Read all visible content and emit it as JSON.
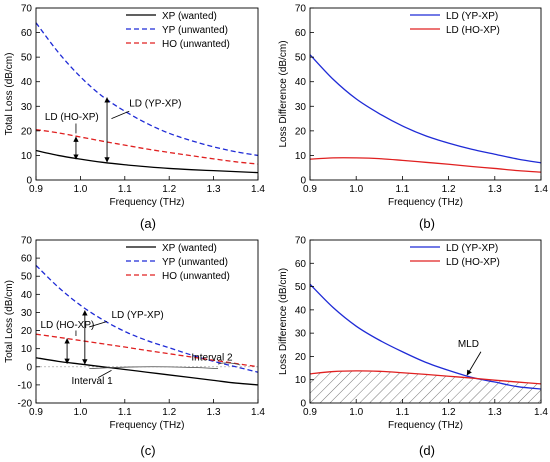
{
  "chart_data": [
    {
      "type": "line",
      "panel_label": "(a)",
      "xlabel": "Frequency (THz)",
      "ylabel": "Total Loss (dB/cm)",
      "xlim": [
        0.9,
        1.4
      ],
      "ylim": [
        0,
        70
      ],
      "xticks": [
        0.9,
        1.0,
        1.1,
        1.2,
        1.3,
        1.4
      ],
      "yticks": [
        0,
        10,
        20,
        30,
        40,
        50,
        60,
        70
      ],
      "legend_position": "top-left",
      "series": [
        {
          "name": "XP  (wanted)",
          "color": "#000000",
          "style": "solid",
          "x": [
            0.9,
            0.95,
            1.0,
            1.05,
            1.1,
            1.15,
            1.2,
            1.25,
            1.3,
            1.35,
            1.4
          ],
          "values": [
            12,
            10,
            8.5,
            7.2,
            6.2,
            5.4,
            4.7,
            4.2,
            3.8,
            3.4,
            3.0
          ]
        },
        {
          "name": "YP  (unwanted)",
          "color": "#1f2bd6",
          "style": "dashed",
          "x": [
            0.9,
            0.95,
            1.0,
            1.05,
            1.1,
            1.15,
            1.2,
            1.25,
            1.3,
            1.35,
            1.4
          ],
          "values": [
            64,
            52,
            42,
            34,
            28,
            23,
            19,
            16,
            13.5,
            11.5,
            10
          ]
        },
        {
          "name": "HO  (unwanted)",
          "color": "#e02020",
          "style": "dashed",
          "x": [
            0.9,
            0.95,
            1.0,
            1.05,
            1.1,
            1.15,
            1.2,
            1.25,
            1.3,
            1.35,
            1.4
          ],
          "values": [
            20.5,
            19.2,
            17.5,
            15.8,
            14.2,
            12.6,
            11.2,
            9.9,
            8.6,
            7.4,
            6.5
          ]
        }
      ],
      "annotations": [
        {
          "text": "LD (HO-XP)",
          "x": 0.97,
          "y": 25
        },
        {
          "text": "LD (YP-XP)",
          "x": 1.12,
          "y": 32
        }
      ]
    },
    {
      "type": "line",
      "panel_label": "(b)",
      "xlabel": "Frequency (THz)",
      "ylabel": "Loss Difference (dB/cm)",
      "xlim": [
        0.9,
        1.4
      ],
      "ylim": [
        0,
        70
      ],
      "xticks": [
        0.9,
        1.0,
        1.1,
        1.2,
        1.3,
        1.4
      ],
      "yticks": [
        0,
        10,
        20,
        30,
        40,
        50,
        60,
        70
      ],
      "legend_position": "top-right",
      "series": [
        {
          "name": "LD (YP-XP)",
          "color": "#1f2bd6",
          "style": "solid",
          "x": [
            0.9,
            0.95,
            1.0,
            1.05,
            1.1,
            1.15,
            1.2,
            1.25,
            1.3,
            1.35,
            1.4
          ],
          "values": [
            51,
            41,
            33,
            27,
            22,
            18,
            15,
            12.5,
            10.5,
            8.5,
            7
          ]
        },
        {
          "name": "LD (HO-XP)",
          "color": "#e02020",
          "style": "solid",
          "x": [
            0.9,
            0.95,
            1.0,
            1.05,
            1.1,
            1.15,
            1.2,
            1.25,
            1.3,
            1.35,
            1.4
          ],
          "values": [
            8.5,
            9.0,
            9.0,
            8.7,
            8.0,
            7.2,
            6.4,
            5.5,
            4.7,
            3.8,
            3.2
          ]
        }
      ]
    },
    {
      "type": "line",
      "panel_label": "(c)",
      "xlabel": "Frequency (THz)",
      "ylabel": "Total Loss (dB/cm)",
      "xlim": [
        0.9,
        1.4
      ],
      "ylim": [
        -20,
        70
      ],
      "xticks": [
        0.9,
        1.0,
        1.1,
        1.2,
        1.3,
        1.4
      ],
      "yticks": [
        -20,
        -10,
        0,
        10,
        20,
        30,
        40,
        50,
        60,
        70
      ],
      "legend_position": "top-right",
      "series": [
        {
          "name": "XP  (wanted)",
          "color": "#000000",
          "style": "solid",
          "x": [
            0.9,
            0.95,
            1.0,
            1.05,
            1.1,
            1.15,
            1.2,
            1.25,
            1.3,
            1.35,
            1.4
          ],
          "values": [
            5,
            3,
            1.5,
            0,
            -1.5,
            -3,
            -4.5,
            -6,
            -7.5,
            -9,
            -10
          ]
        },
        {
          "name": "YP  (unwanted)",
          "color": "#1f2bd6",
          "style": "dashed",
          "x": [
            0.9,
            0.95,
            1.0,
            1.05,
            1.1,
            1.15,
            1.2,
            1.25,
            1.3,
            1.35,
            1.4
          ],
          "values": [
            56,
            44,
            34,
            26,
            19.5,
            14.5,
            10.5,
            6.5,
            3,
            0,
            -3
          ]
        },
        {
          "name": "HO  (unwanted)",
          "color": "#e02020",
          "style": "dashed",
          "x": [
            0.9,
            0.95,
            1.0,
            1.05,
            1.1,
            1.15,
            1.2,
            1.25,
            1.3,
            1.35,
            1.4
          ],
          "values": [
            18,
            16.3,
            14.5,
            12.7,
            10.9,
            9.0,
            7.2,
            5.4,
            3.6,
            1.8,
            0
          ]
        }
      ],
      "annotations": [
        {
          "text": "LD (HO-XP)",
          "x": 0.96,
          "y": 22
        },
        {
          "text": "LD (YP-XP)",
          "x": 1.07,
          "y": 27
        },
        {
          "text": "Interval 1",
          "x": 1.02,
          "y": -9
        },
        {
          "text": "Interval 2",
          "x": 1.28,
          "y": 4
        }
      ]
    },
    {
      "type": "line",
      "panel_label": "(d)",
      "xlabel": "Frequency (THz)",
      "ylabel": "Loss Difference (dB/cm)",
      "xlim": [
        0.9,
        1.4
      ],
      "ylim": [
        0,
        70
      ],
      "xticks": [
        0.9,
        1.0,
        1.1,
        1.2,
        1.3,
        1.4
      ],
      "yticks": [
        0,
        10,
        20,
        30,
        40,
        50,
        60,
        70
      ],
      "legend_position": "top-right",
      "series": [
        {
          "name": "LD (YP-XP)",
          "color": "#1f2bd6",
          "style": "solid",
          "x": [
            0.9,
            0.95,
            1.0,
            1.05,
            1.1,
            1.15,
            1.2,
            1.25,
            1.3,
            1.35,
            1.4
          ],
          "values": [
            51,
            41,
            33,
            27,
            22,
            17.5,
            14,
            11,
            9,
            7,
            6
          ]
        },
        {
          "name": "LD (HO-XP)",
          "color": "#e02020",
          "style": "solid",
          "x": [
            0.9,
            0.95,
            1.0,
            1.05,
            1.1,
            1.15,
            1.2,
            1.25,
            1.3,
            1.35,
            1.4
          ],
          "values": [
            12.5,
            13.5,
            13.8,
            13.6,
            13.0,
            12.3,
            11.5,
            10.7,
            9.8,
            9.0,
            8.2
          ]
        }
      ],
      "annotations": [
        {
          "text": "MLD",
          "x": 1.26,
          "y": 25
        }
      ],
      "hatched_region": "MLD"
    }
  ]
}
